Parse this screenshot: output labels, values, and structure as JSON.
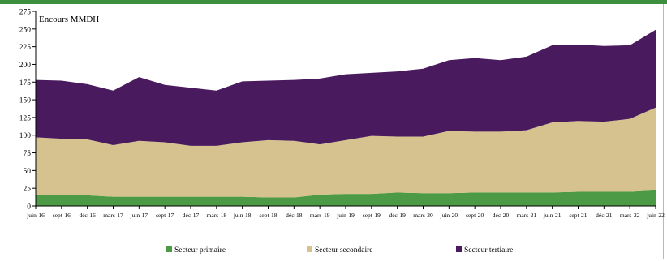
{
  "chart_data": {
    "type": "area",
    "stacked": true,
    "unit_label": "Encours MMDH",
    "ylim": [
      0,
      275
    ],
    "yticks": [
      0,
      25,
      50,
      75,
      100,
      125,
      150,
      175,
      200,
      225,
      250,
      275
    ],
    "categories": [
      "juin-16",
      "sept-16",
      "déc-16",
      "mars-17",
      "juin-17",
      "sept-17",
      "déc-17",
      "mars-18",
      "juin-18",
      "sept-18",
      "déc-18",
      "mars-19",
      "juin-19",
      "sept-19",
      "déc-19",
      "mars-20",
      "juin-20",
      "sept-20",
      "déc-20",
      "mars-21",
      "juin-21",
      "sept-21",
      "déc-21",
      "mars-22",
      "juin-22"
    ],
    "series": [
      {
        "name": "Secteur primaire",
        "color": "#4c9a45",
        "values": [
          15,
          15,
          15,
          13,
          13,
          13,
          13,
          13,
          13,
          12,
          12,
          16,
          17,
          17,
          19,
          18,
          18,
          19,
          19,
          19,
          19,
          20,
          20,
          20,
          22
        ]
      },
      {
        "name": "Secteur secondaire",
        "color": "#d6c28e",
        "values": [
          82,
          80,
          79,
          73,
          79,
          77,
          72,
          72,
          77,
          81,
          80,
          71,
          76,
          82,
          79,
          80,
          88,
          86,
          86,
          88,
          99,
          100,
          99,
          103,
          117
        ]
      },
      {
        "name": "Secteur tertiaire",
        "color": "#4a1a5e",
        "values": [
          81,
          82,
          78,
          77,
          90,
          81,
          82,
          78,
          86,
          84,
          86,
          93,
          93,
          89,
          92,
          96,
          100,
          104,
          101,
          104,
          109,
          108,
          107,
          104,
          110
        ]
      }
    ],
    "legend_position": "bottom",
    "grid": false
  }
}
